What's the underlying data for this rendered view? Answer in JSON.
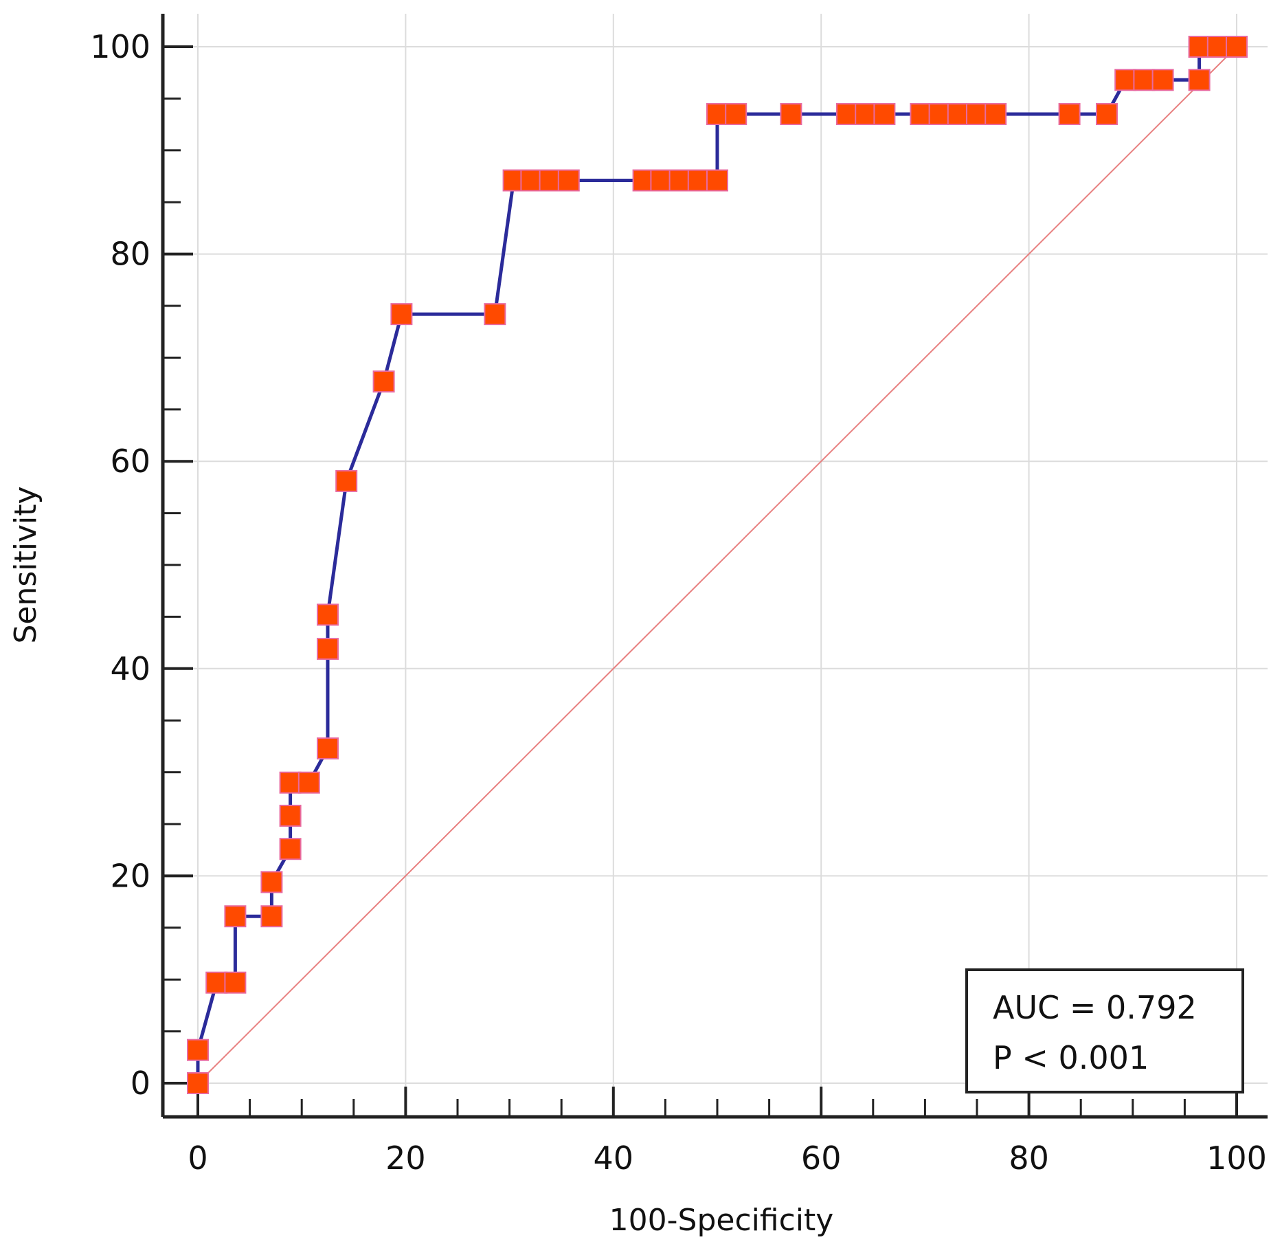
{
  "chart_data": {
    "type": "line",
    "title": "",
    "xlabel": "100-Specificity",
    "ylabel": "Sensitivity",
    "xlim": [
      0,
      100
    ],
    "ylim": [
      0,
      100
    ],
    "x_ticks": [
      0,
      20,
      40,
      60,
      80,
      100
    ],
    "y_ticks": [
      0,
      20,
      40,
      60,
      80,
      100
    ],
    "x_tick_labels": [
      "0",
      "20",
      "40",
      "60",
      "80",
      "100"
    ],
    "y_tick_labels": [
      "0",
      "20",
      "40",
      "60",
      "80",
      "100"
    ],
    "x_minor_step": 5,
    "y_minor_step": 5,
    "grid": true,
    "legend": "none",
    "series": [
      {
        "name": "ROC curve",
        "color": "#2b2b9a",
        "marker_color": "#ff4a00",
        "x": [
          0,
          0,
          1.8,
          3.6,
          3.6,
          7.1,
          7.1,
          8.9,
          8.9,
          8.9,
          10.7,
          12.5,
          12.5,
          12.5,
          14.3,
          17.9,
          19.6,
          28.6,
          30.4,
          32.1,
          33.9,
          35.7,
          42.9,
          44.6,
          46.4,
          48.2,
          50.0,
          50.0,
          51.8,
          57.1,
          62.5,
          64.3,
          66.1,
          69.6,
          71.4,
          73.2,
          75.0,
          76.8,
          83.9,
          87.5,
          89.3,
          91.1,
          92.9,
          96.4,
          96.4,
          98.2,
          100
        ],
        "y": [
          0,
          3.2,
          9.7,
          9.7,
          16.1,
          16.1,
          19.4,
          22.6,
          25.8,
          29.0,
          29.0,
          32.3,
          41.9,
          45.2,
          58.1,
          67.7,
          74.2,
          74.2,
          87.1,
          87.1,
          87.1,
          87.1,
          87.1,
          87.1,
          87.1,
          87.1,
          87.1,
          93.5,
          93.5,
          93.5,
          93.5,
          93.5,
          93.5,
          93.5,
          93.5,
          93.5,
          93.5,
          93.5,
          93.5,
          93.5,
          96.8,
          96.8,
          96.8,
          96.8,
          100,
          100,
          100
        ]
      }
    ],
    "reference_line": {
      "name": "chance diagonal",
      "color": "#e88080",
      "x": [
        0,
        100
      ],
      "y": [
        0,
        100
      ]
    },
    "annotations": {
      "auc": "AUC = 0.792",
      "p_value": "P < 0.001"
    }
  }
}
